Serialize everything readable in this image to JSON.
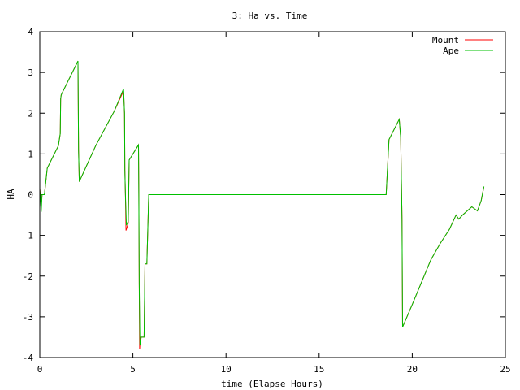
{
  "chart_data": {
    "type": "line",
    "title": "3: Ha vs. Time",
    "xlabel": "time (Elapse Hours)",
    "ylabel": "HA",
    "xlim": [
      0,
      25
    ],
    "ylim": [
      -4,
      4
    ],
    "xticks": [
      0,
      5,
      10,
      15,
      20,
      25
    ],
    "yticks": [
      -4,
      -3,
      -2,
      -1,
      0,
      1,
      2,
      3,
      4
    ],
    "grid": false,
    "legend": "top-right",
    "series": [
      {
        "name": "Mount",
        "color": "#ff0000",
        "points": [
          [
            0.0,
            0.15
          ],
          [
            0.08,
            -0.25
          ],
          [
            0.12,
            0.0
          ],
          [
            0.25,
            0.0
          ],
          [
            0.4,
            0.65
          ],
          [
            1.0,
            1.2
          ],
          [
            1.1,
            1.5
          ],
          [
            1.12,
            2.35
          ],
          [
            1.15,
            2.45
          ],
          [
            2.05,
            3.28
          ],
          [
            2.08,
            1.1
          ],
          [
            2.12,
            0.32
          ],
          [
            3.0,
            1.2
          ],
          [
            4.0,
            2.05
          ],
          [
            4.5,
            2.55
          ],
          [
            4.55,
            2.0
          ],
          [
            4.57,
            0.6
          ],
          [
            4.6,
            0.0
          ],
          [
            4.63,
            -0.88
          ],
          [
            4.75,
            -0.7
          ],
          [
            4.8,
            0.85
          ],
          [
            5.3,
            1.22
          ],
          [
            5.32,
            0.0
          ],
          [
            5.34,
            -2.2
          ],
          [
            5.36,
            -3.8
          ],
          [
            5.4,
            -3.5
          ],
          [
            5.6,
            -3.5
          ],
          [
            5.65,
            -1.7
          ],
          [
            5.75,
            -1.7
          ],
          [
            5.85,
            0.0
          ],
          [
            18.5,
            0.0
          ],
          [
            18.6,
            0.0
          ],
          [
            18.75,
            1.35
          ],
          [
            19.3,
            1.85
          ],
          [
            19.38,
            1.4
          ],
          [
            19.45,
            -0.6
          ],
          [
            19.48,
            -3.25
          ],
          [
            20.0,
            -2.7
          ],
          [
            21.0,
            -1.6
          ],
          [
            21.5,
            -1.2
          ],
          [
            22.0,
            -0.85
          ],
          [
            22.35,
            -0.5
          ],
          [
            22.5,
            -0.6
          ],
          [
            22.7,
            -0.5
          ],
          [
            23.2,
            -0.3
          ],
          [
            23.5,
            -0.4
          ],
          [
            23.7,
            -0.15
          ],
          [
            23.85,
            0.2
          ]
        ]
      },
      {
        "name": "Ape",
        "color": "#00c000",
        "points": [
          [
            0.0,
            0.15
          ],
          [
            0.08,
            -0.42
          ],
          [
            0.12,
            0.0
          ],
          [
            0.25,
            0.0
          ],
          [
            0.4,
            0.65
          ],
          [
            1.0,
            1.2
          ],
          [
            1.1,
            1.5
          ],
          [
            1.12,
            2.35
          ],
          [
            1.15,
            2.45
          ],
          [
            2.05,
            3.28
          ],
          [
            2.08,
            1.1
          ],
          [
            2.12,
            0.32
          ],
          [
            3.0,
            1.2
          ],
          [
            4.0,
            2.05
          ],
          [
            4.5,
            2.6
          ],
          [
            4.55,
            2.0
          ],
          [
            4.57,
            0.6
          ],
          [
            4.6,
            0.0
          ],
          [
            4.65,
            -0.75
          ],
          [
            4.75,
            -0.65
          ],
          [
            4.8,
            0.85
          ],
          [
            5.3,
            1.22
          ],
          [
            5.32,
            0.0
          ],
          [
            5.34,
            -2.2
          ],
          [
            5.38,
            -3.7
          ],
          [
            5.45,
            -3.5
          ],
          [
            5.6,
            -3.5
          ],
          [
            5.65,
            -1.7
          ],
          [
            5.75,
            -1.7
          ],
          [
            5.85,
            0.0
          ],
          [
            18.5,
            0.0
          ],
          [
            18.6,
            0.0
          ],
          [
            18.75,
            1.35
          ],
          [
            19.3,
            1.85
          ],
          [
            19.38,
            1.4
          ],
          [
            19.45,
            -0.6
          ],
          [
            19.48,
            -3.25
          ],
          [
            20.0,
            -2.7
          ],
          [
            21.0,
            -1.6
          ],
          [
            21.5,
            -1.2
          ],
          [
            22.0,
            -0.85
          ],
          [
            22.35,
            -0.5
          ],
          [
            22.5,
            -0.6
          ],
          [
            22.7,
            -0.5
          ],
          [
            23.2,
            -0.3
          ],
          [
            23.5,
            -0.4
          ],
          [
            23.7,
            -0.15
          ],
          [
            23.85,
            0.2
          ]
        ]
      }
    ]
  }
}
